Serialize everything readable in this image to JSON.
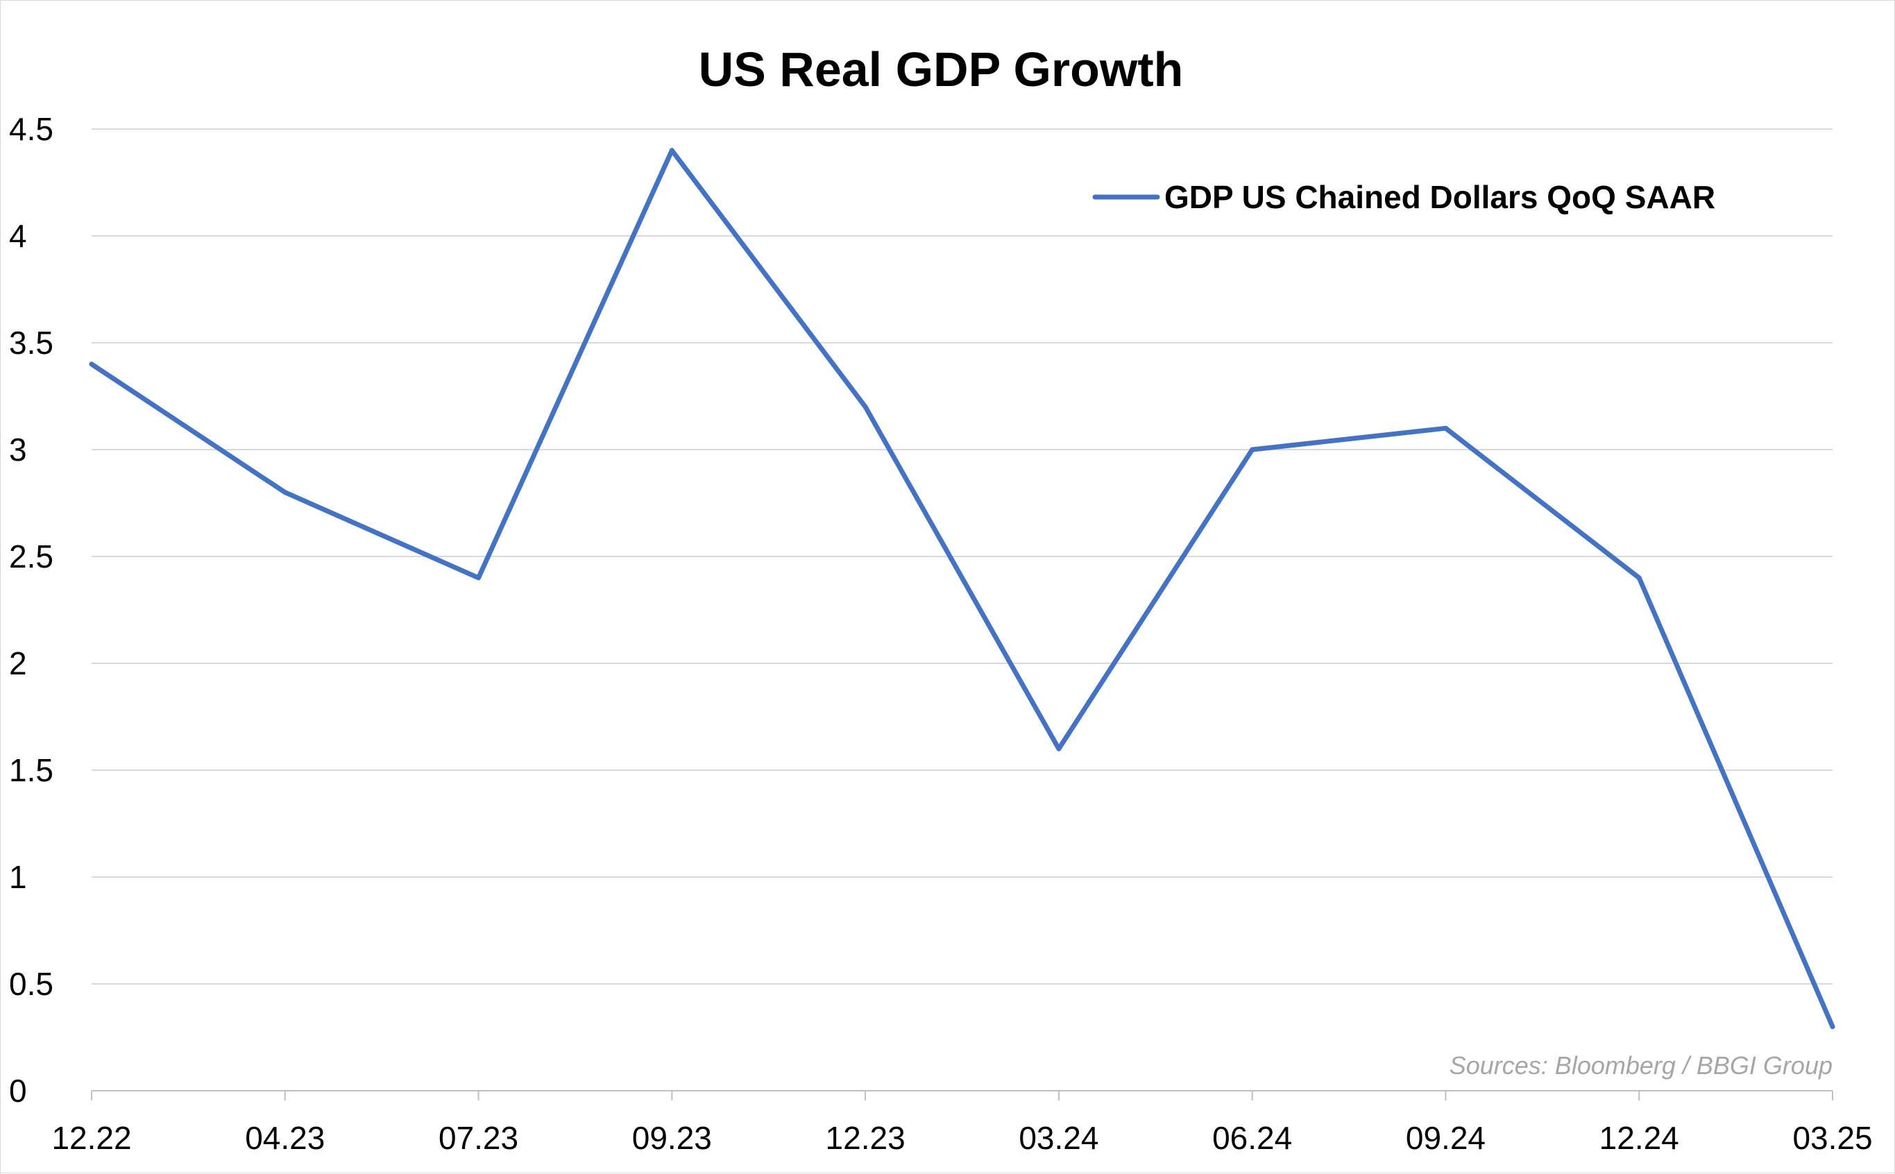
{
  "chart_data": {
    "type": "line",
    "title": "US Real GDP Growth",
    "xlabel": "",
    "ylabel": "",
    "categories": [
      "12.22",
      "04.23",
      "07.23",
      "09.23",
      "12.23",
      "03.24",
      "06.24",
      "09.24",
      "12.24",
      "03.25"
    ],
    "series": [
      {
        "name": "GDP US Chained Dollars QoQ SAAR",
        "color": "#4472c4",
        "values": [
          3.4,
          2.8,
          2.4,
          4.4,
          3.2,
          1.6,
          3.0,
          3.1,
          2.4,
          0.3
        ]
      }
    ],
    "ylim": [
      0,
      4.5
    ],
    "yticks": [
      "0",
      "0.5",
      "1",
      "1.5",
      "2",
      "2.5",
      "3",
      "3.5",
      "4",
      "4.5"
    ],
    "grid": true,
    "legend_position": "top-right",
    "source": "Sources: Bloomberg / BBGI Group",
    "colors": {
      "gridline": "#d9d9d9",
      "axis": "#bfbfbf",
      "source_text": "#a6a6a6"
    }
  }
}
